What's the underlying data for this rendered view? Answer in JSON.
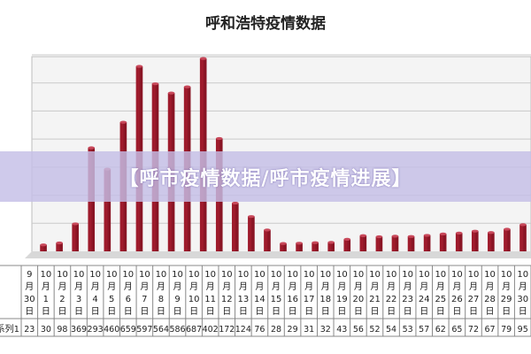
{
  "banner": {
    "text": "【呼市疫情数据/呼市疫情进展】"
  },
  "chart_data": {
    "type": "bar",
    "title": "呼和浩特疫情数据",
    "color": "#9e1b2c",
    "series_label": "系列1",
    "ylim": [
      0,
      700
    ],
    "categories": [
      [
        "9",
        "月",
        "30",
        "日"
      ],
      [
        "10",
        "月",
        "1",
        "日"
      ],
      [
        "10",
        "月",
        "2",
        "日"
      ],
      [
        "10",
        "月",
        "3",
        "日"
      ],
      [
        "10",
        "月",
        "4",
        "日"
      ],
      [
        "10",
        "月",
        "5",
        "日"
      ],
      [
        "10",
        "月",
        "6",
        "日"
      ],
      [
        "10",
        "月",
        "7",
        "日"
      ],
      [
        "10",
        "月",
        "8",
        "日"
      ],
      [
        "10",
        "月",
        "9",
        "日"
      ],
      [
        "10",
        "月",
        "10",
        "日"
      ],
      [
        "10",
        "月",
        "11",
        "日"
      ],
      [
        "10",
        "月",
        "12",
        "日"
      ],
      [
        "10",
        "月",
        "13",
        "日"
      ],
      [
        "10",
        "月",
        "14",
        "日"
      ],
      [
        "10",
        "月",
        "15",
        "日"
      ],
      [
        "10",
        "月",
        "16",
        "日"
      ],
      [
        "10",
        "月",
        "17",
        "日"
      ],
      [
        "10",
        "月",
        "18",
        "日"
      ],
      [
        "10",
        "月",
        "19",
        "日"
      ],
      [
        "10",
        "月",
        "20",
        "日"
      ],
      [
        "10",
        "月",
        "21",
        "日"
      ],
      [
        "10",
        "月",
        "22",
        "日"
      ],
      [
        "10",
        "月",
        "23",
        "日"
      ],
      [
        "10",
        "月",
        "24",
        "日"
      ],
      [
        "10",
        "月",
        "25",
        "日"
      ],
      [
        "10",
        "月",
        "26",
        "日"
      ],
      [
        "10",
        "月",
        "27",
        "日"
      ],
      [
        "10",
        "月",
        "28",
        "日"
      ],
      [
        "10",
        "月",
        "29",
        "日"
      ],
      [
        "10",
        "月",
        "30",
        "日"
      ]
    ],
    "values": [
      23,
      30,
      98,
      369,
      293,
      460,
      659,
      597,
      564,
      586,
      687,
      402,
      172,
      124,
      76,
      28,
      29,
      31,
      32,
      43,
      56,
      52,
      54,
      53,
      57,
      62,
      65,
      72,
      67,
      79,
      95
    ]
  }
}
